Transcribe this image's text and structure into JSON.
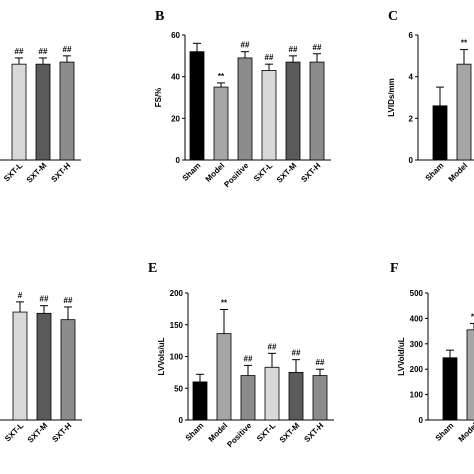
{
  "chart_data": [
    {
      "type": "bar",
      "categories": [
        "SXT-L",
        "SXT-M",
        "SXT-H"
      ],
      "values": [
        46,
        46,
        47
      ],
      "errors": [
        3,
        3,
        3
      ],
      "annotations": [
        "##",
        "##",
        "##"
      ],
      "colors": [
        "#d9d9d9",
        "#5a5a5a",
        "#8c8c8c"
      ],
      "ylim": [
        0,
        60
      ]
    },
    {
      "type": "bar",
      "title": "B",
      "y_label": "FS/%",
      "categories": [
        "Sham",
        "Model",
        "Positive",
        "SXT-L",
        "SXT-M",
        "SXT-H"
      ],
      "values": [
        52,
        35,
        49,
        43,
        47,
        47
      ],
      "errors": [
        4,
        2,
        3,
        3,
        3,
        4
      ],
      "annotations": [
        null,
        "**",
        "##",
        "##",
        "##",
        "##"
      ],
      "colors": [
        "#000000",
        "#a6a6a6",
        "#8c8c8c",
        "#d9d9d9",
        "#5a5a5a",
        "#8c8c8c"
      ],
      "ylim": [
        0,
        60
      ],
      "yticks": [
        0,
        20,
        40,
        60
      ]
    },
    {
      "type": "bar",
      "title": "C",
      "y_label": "LVIDs/mm",
      "categories": [
        "Sham",
        "Model"
      ],
      "values": [
        2.6,
        4.6
      ],
      "errors": [
        0.9,
        0.7
      ],
      "annotations": [
        null,
        "**"
      ],
      "colors": [
        "#000000",
        "#a6a6a6"
      ],
      "ylim": [
        0,
        6
      ],
      "yticks": [
        0,
        2,
        4,
        6
      ]
    },
    {
      "type": "bar",
      "categories": [
        "SXT-L",
        "SXT-M",
        "SXT-H"
      ],
      "values": [
        85,
        84,
        79
      ],
      "errors": [
        8,
        6,
        10
      ],
      "annotations": [
        "#",
        "##",
        "##"
      ],
      "colors": [
        "#d9d9d9",
        "#5a5a5a",
        "#8c8c8c"
      ],
      "ylim": [
        0,
        100
      ]
    },
    {
      "type": "bar",
      "title": "E",
      "y_label": "LVVols/uL",
      "categories": [
        "Sham",
        "Model",
        "Positive",
        "SXT-L",
        "SXT-M",
        "SXT-H"
      ],
      "values": [
        60,
        136,
        70,
        83,
        75,
        70
      ],
      "errors": [
        12,
        38,
        16,
        22,
        20,
        10
      ],
      "annotations": [
        null,
        "**",
        "##",
        "##",
        "##",
        "##"
      ],
      "colors": [
        "#000000",
        "#a6a6a6",
        "#8c8c8c",
        "#d9d9d9",
        "#5a5a5a",
        "#8c8c8c"
      ],
      "ylim": [
        0,
        200
      ],
      "yticks": [
        0,
        50,
        100,
        150,
        200
      ]
    },
    {
      "type": "bar",
      "title": "F",
      "y_label": "LVVold/uL",
      "categories": [
        "Sham",
        "Model"
      ],
      "values": [
        245,
        355
      ],
      "errors": [
        30,
        25
      ],
      "annotations": [
        null,
        "**"
      ],
      "colors": [
        "#000000",
        "#a6a6a6"
      ],
      "ylim": [
        0,
        500
      ],
      "yticks": [
        0,
        100,
        200,
        300,
        400,
        500
      ]
    }
  ]
}
